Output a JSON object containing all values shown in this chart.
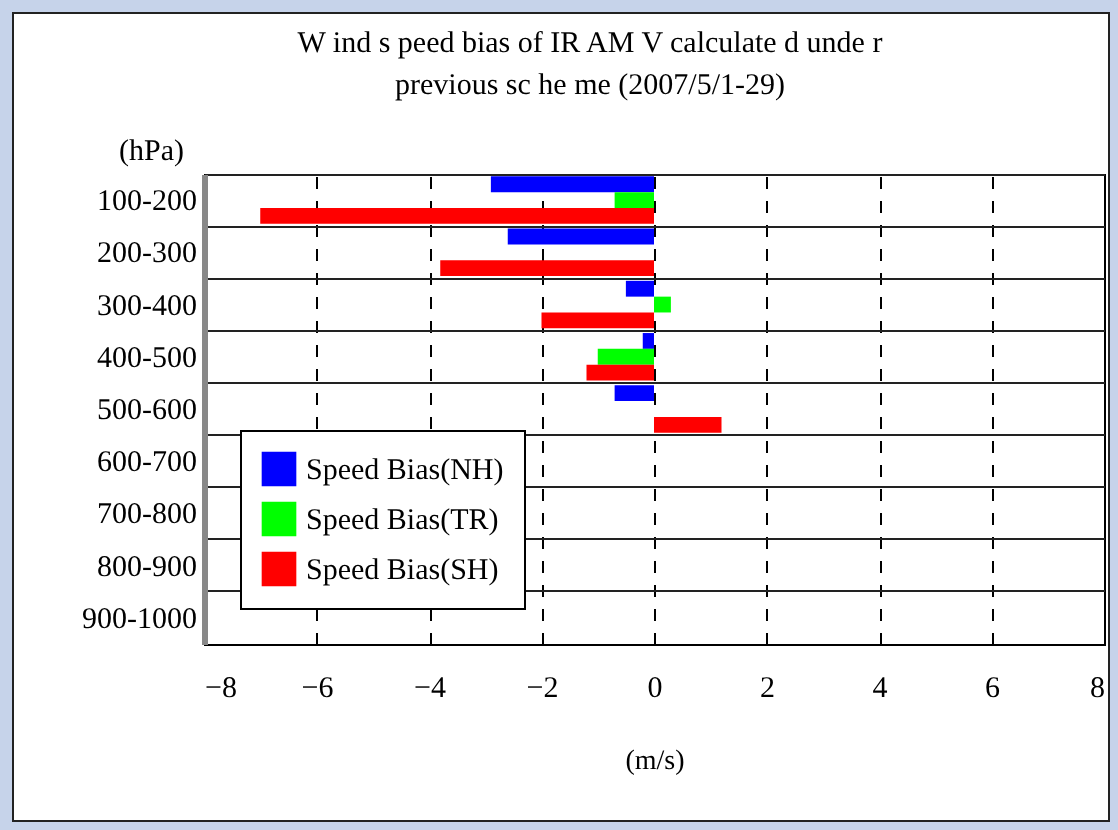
{
  "chart_data": {
    "type": "bar",
    "orientation": "horizontal",
    "title": "W ind s peed bias of IR AM V calculate d unde r previous sc he me (2007/5/1-29)",
    "ylabel": "(hPa)",
    "xlabel": "(m/s)",
    "categories": [
      "100-200",
      "200-300",
      "300-400",
      "400-500",
      "500-600",
      "600-700",
      "700-800",
      "800-900",
      "900-1000"
    ],
    "series": [
      {
        "name": "Speed Bias(NH)",
        "color": "#0000ff",
        "values": [
          -2.9,
          -2.6,
          -0.5,
          -0.2,
          -0.7,
          null,
          null,
          null,
          null
        ]
      },
      {
        "name": "Speed Bias(TR)",
        "color": "#00ff00",
        "values": [
          -0.7,
          null,
          0.3,
          -1.0,
          null,
          null,
          null,
          null,
          null
        ]
      },
      {
        "name": "Speed Bias(SH)",
        "color": "#ff0000",
        "values": [
          -7.0,
          -3.8,
          -2.0,
          -1.2,
          1.2,
          null,
          null,
          null,
          null
        ]
      }
    ],
    "xlim": [
      -8,
      8
    ],
    "xticks": [
      -8,
      -6,
      -4,
      -2,
      0,
      2,
      4,
      6,
      8
    ],
    "grid": true,
    "legend": "bottom left"
  }
}
